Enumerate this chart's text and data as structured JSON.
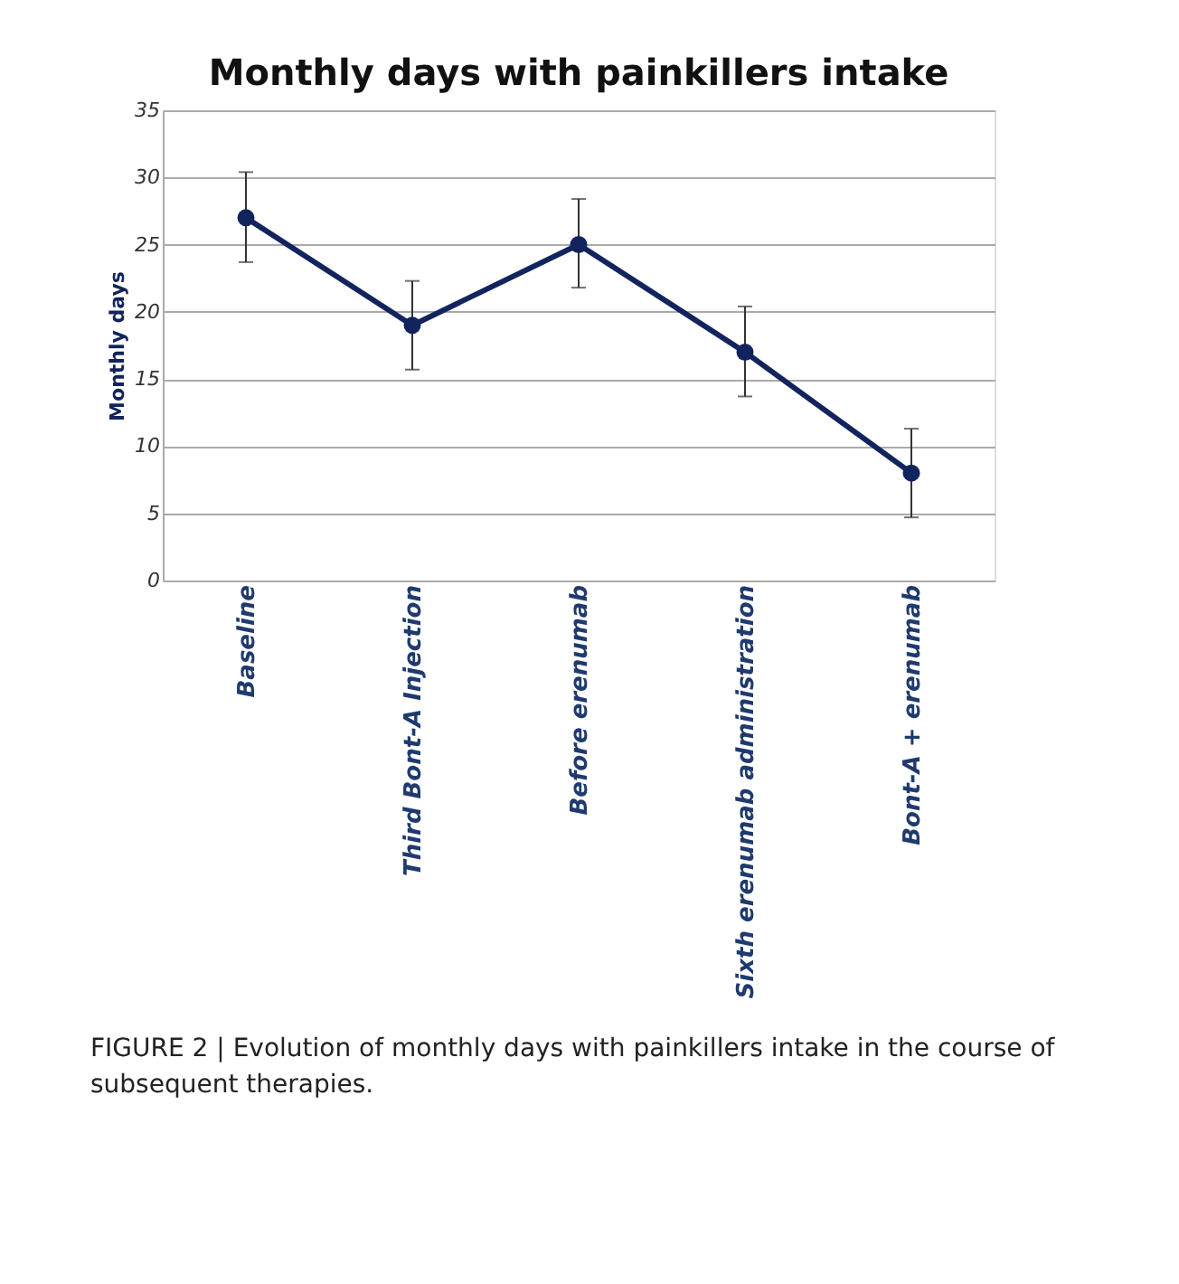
{
  "chart_data": {
    "type": "line",
    "title": "Monthly days with painkillers intake",
    "ylabel": "Monthly days",
    "categories": [
      "Baseline",
      "Third Bont-A Injection",
      "Before erenumab",
      "Sixth erenumab administration",
      "Bont-A + erenumab"
    ],
    "series": [
      {
        "color": "#12245e",
        "values": [
          27,
          19,
          25,
          17,
          8
        ],
        "errors": [
          [
            23.7,
            30.4
          ],
          [
            15.7,
            22.3
          ],
          [
            21.8,
            28.4
          ],
          [
            13.7,
            20.4
          ],
          [
            4.7,
            11.3
          ]
        ]
      }
    ],
    "ylim": [
      0,
      35
    ],
    "yticks": [
      0,
      5,
      10,
      15,
      20,
      25,
      30,
      35
    ],
    "grid": "y",
    "marker": "circle",
    "line_style": "solid",
    "annotations": [
      "FIGURE 2 | Evolution of monthly days with painkillers intake in the course of subsequent therapies."
    ]
  }
}
